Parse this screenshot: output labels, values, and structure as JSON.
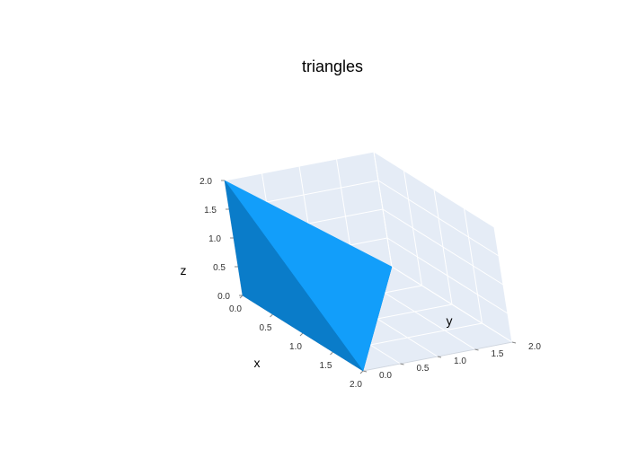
{
  "chart_data": {
    "type": "mesh3d",
    "title": "triangles",
    "axes": {
      "x": {
        "label": "x",
        "range": [
          0,
          2
        ],
        "ticks": [
          "0.0",
          "0.5",
          "1.0",
          "1.5",
          "2.0"
        ]
      },
      "y": {
        "label": "y",
        "range": [
          0,
          2
        ],
        "ticks": [
          "0.0",
          "0.5",
          "1.0",
          "1.5",
          "2.0"
        ]
      },
      "z": {
        "label": "z",
        "range": [
          0,
          2
        ],
        "ticks": [
          "0.0",
          "0.5",
          "1.0",
          "1.5",
          "2.0"
        ]
      }
    },
    "vertices": [
      {
        "x": 0,
        "y": 0,
        "z": 0
      },
      {
        "x": 2,
        "y": 0,
        "z": 0
      },
      {
        "x": 0,
        "y": 2,
        "z": 0
      },
      {
        "x": 0,
        "y": 0,
        "z": 2
      }
    ],
    "faces": [
      {
        "i": 0,
        "j": 1,
        "k": 2,
        "color": "#0a74c4"
      },
      {
        "i": 0,
        "j": 1,
        "k": 3,
        "color": "#0a7cc9"
      },
      {
        "i": 1,
        "j": 2,
        "k": 3,
        "color": "#129efa"
      }
    ],
    "colors": {
      "mesh": "#0a7cc9",
      "mesh_highlight": "#129efa",
      "pane": "#e5ecf6",
      "grid": "#ffffff"
    },
    "grid": true,
    "legend": false
  }
}
